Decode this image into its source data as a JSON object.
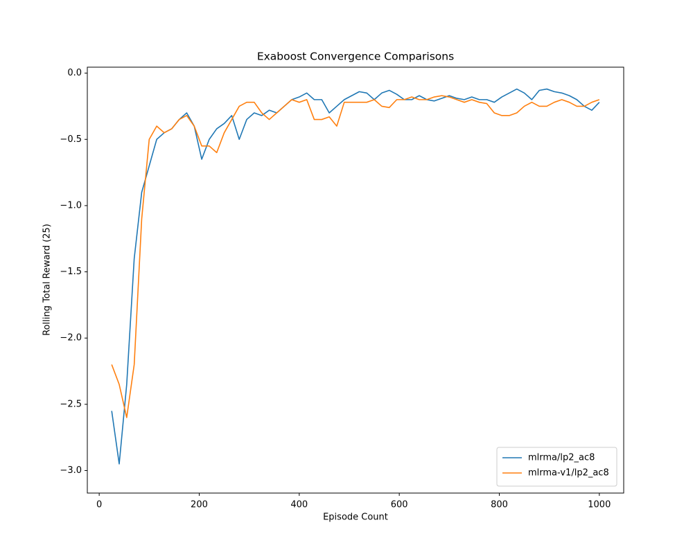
{
  "chart_data": {
    "type": "line",
    "title": "Exaboost Convergence Comparisons",
    "x_label": "Episode Count",
    "y_label": "Rolling Total Reward (25)",
    "x": [
      25,
      40,
      55,
      70,
      85,
      100,
      115,
      130,
      145,
      160,
      175,
      190,
      205,
      220,
      235,
      250,
      265,
      280,
      295,
      310,
      325,
      340,
      355,
      370,
      385,
      400,
      415,
      430,
      445,
      460,
      475,
      490,
      505,
      520,
      535,
      550,
      565,
      580,
      595,
      610,
      625,
      640,
      655,
      670,
      685,
      700,
      715,
      730,
      745,
      760,
      775,
      790,
      805,
      820,
      835,
      850,
      865,
      880,
      895,
      910,
      925,
      940,
      955,
      970,
      985,
      1000
    ],
    "series": [
      {
        "name": "mlrma/lp2_ac8",
        "color": "#1f77b4",
        "values": [
          -2.55,
          -2.95,
          -2.35,
          -1.4,
          -0.9,
          -0.7,
          -0.5,
          -0.45,
          -0.42,
          -0.35,
          -0.3,
          -0.4,
          -0.65,
          -0.5,
          -0.42,
          -0.38,
          -0.32,
          -0.5,
          -0.35,
          -0.3,
          -0.32,
          -0.28,
          -0.3,
          -0.25,
          -0.2,
          -0.18,
          -0.15,
          -0.2,
          -0.2,
          -0.3,
          -0.25,
          -0.2,
          -0.17,
          -0.14,
          -0.15,
          -0.2,
          -0.15,
          -0.13,
          -0.16,
          -0.2,
          -0.2,
          -0.17,
          -0.2,
          -0.21,
          -0.19,
          -0.17,
          -0.19,
          -0.2,
          -0.18,
          -0.2,
          -0.2,
          -0.22,
          -0.18,
          -0.15,
          -0.12,
          -0.15,
          -0.2,
          -0.13,
          -0.12,
          -0.14,
          -0.15,
          -0.17,
          -0.2,
          -0.25,
          -0.28,
          -0.22
        ]
      },
      {
        "name": "mlrma-v1/lp2_ac8",
        "color": "#ff7f0e",
        "values": [
          -2.2,
          -2.35,
          -2.6,
          -2.2,
          -1.1,
          -0.5,
          -0.4,
          -0.45,
          -0.42,
          -0.35,
          -0.32,
          -0.4,
          -0.55,
          -0.55,
          -0.6,
          -0.45,
          -0.35,
          -0.25,
          -0.22,
          -0.22,
          -0.3,
          -0.35,
          -0.3,
          -0.25,
          -0.2,
          -0.22,
          -0.2,
          -0.35,
          -0.35,
          -0.33,
          -0.4,
          -0.22,
          -0.22,
          -0.22,
          -0.22,
          -0.2,
          -0.25,
          -0.26,
          -0.2,
          -0.2,
          -0.18,
          -0.2,
          -0.2,
          -0.18,
          -0.17,
          -0.18,
          -0.2,
          -0.22,
          -0.2,
          -0.22,
          -0.23,
          -0.3,
          -0.32,
          -0.32,
          -0.3,
          -0.25,
          -0.22,
          -0.25,
          -0.25,
          -0.22,
          -0.2,
          -0.22,
          -0.25,
          -0.25,
          -0.22,
          -0.2
        ]
      }
    ],
    "xlim": [
      -23.75,
      1048.75
    ],
    "ylim": [
      -3.17,
      0.045
    ],
    "xticks": [
      0,
      200,
      400,
      600,
      800,
      1000
    ],
    "yticks": [
      {
        "value": -3.0,
        "label": "−3.0"
      },
      {
        "value": -2.5,
        "label": "−2.5"
      },
      {
        "value": -2.0,
        "label": "−2.0"
      },
      {
        "value": -1.5,
        "label": "−1.5"
      },
      {
        "value": -1.0,
        "label": "−1.0"
      },
      {
        "value": -0.5,
        "label": "−0.5"
      },
      {
        "value": 0.0,
        "label": "0.0"
      }
    ],
    "legend": "lower right",
    "grid": false
  }
}
